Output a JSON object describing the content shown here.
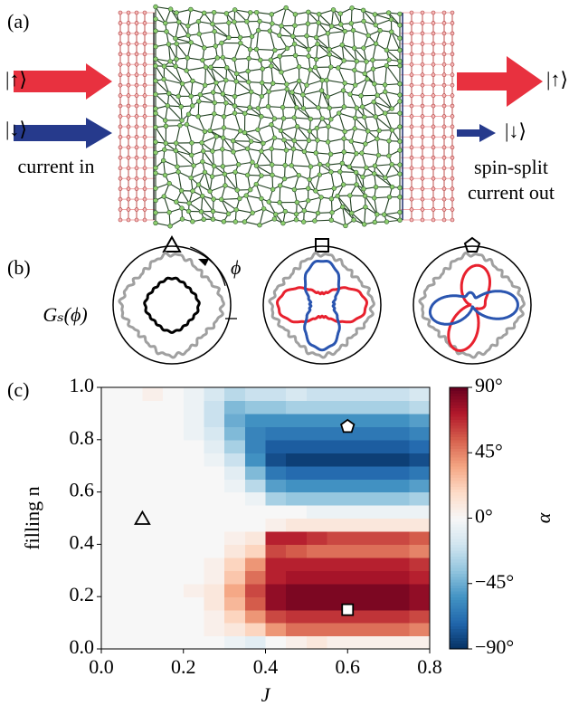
{
  "panel_a": {
    "label": "(a)",
    "spin_up_in": "|↑⟩",
    "spin_down_in": "|↓⟩",
    "input_label": "current in",
    "spin_up_out": "|↑⟩",
    "spin_down_out": "|↓⟩",
    "output_label": [
      "spin-split",
      "current out"
    ]
  },
  "panel_b": {
    "label": "(b)",
    "ylabel": "Gₛ(ϕ)",
    "angle_label": "ϕ"
  },
  "chart_data": {
    "type": "heatmap",
    "panel_label": "(c)",
    "xlabel": "J",
    "ylabel": "filling n",
    "colorbar_label": "α",
    "colormap": "RdBu_r",
    "vlim": [
      -90,
      90
    ],
    "xlim": [
      0,
      0.8
    ],
    "ylim": [
      0,
      1
    ],
    "xticks": [
      {
        "value": 0,
        "label": "0.0"
      },
      0.2,
      0.4,
      0.6,
      0.8
    ],
    "yticks": [
      {
        "value": 0,
        "label": "0.0"
      },
      0.2,
      0.4,
      0.6,
      0.8,
      {
        "value": 1,
        "label": "1.0"
      }
    ],
    "cticks": [
      {
        "value": 90,
        "label": "90°"
      },
      {
        "value": 45,
        "label": "45°"
      },
      {
        "value": 0,
        "label": "0°"
      },
      {
        "value": -45,
        "label": "−45°"
      },
      {
        "value": -90,
        "label": "−90°"
      }
    ],
    "x_bins": [
      0,
      0.05,
      0.1,
      0.15,
      0.2,
      0.25,
      0.3,
      0.35,
      0.4,
      0.45,
      0.5,
      0.55,
      0.6,
      0.65,
      0.7,
      0.75,
      0.8
    ],
    "y_bins": [
      0,
      0.05,
      0.1,
      0.15,
      0.2,
      0.25,
      0.3,
      0.35,
      0.4,
      0.45,
      0.5,
      0.55,
      0.6,
      0.65,
      0.7,
      0.75,
      0.8,
      0.85,
      0.9,
      0.95,
      1
    ],
    "z": [
      [
        0,
        0,
        0,
        0,
        0,
        0,
        -5,
        -10,
        0,
        5,
        10,
        5,
        5,
        5,
        5,
        5
      ],
      [
        0,
        0,
        0,
        0,
        0,
        5,
        10,
        20,
        40,
        50,
        50,
        50,
        50,
        50,
        50,
        45
      ],
      [
        0,
        0,
        0,
        0,
        0,
        5,
        20,
        40,
        60,
        65,
        65,
        65,
        65,
        65,
        65,
        60
      ],
      [
        0,
        0,
        0,
        0,
        0,
        10,
        30,
        55,
        80,
        85,
        85,
        85,
        85,
        85,
        85,
        80
      ],
      [
        0,
        0,
        0,
        0,
        5,
        10,
        35,
        60,
        80,
        85,
        85,
        85,
        85,
        85,
        85,
        80
      ],
      [
        0,
        0,
        0,
        0,
        0,
        5,
        25,
        50,
        70,
        75,
        75,
        75,
        75,
        75,
        75,
        70
      ],
      [
        0,
        0,
        0,
        0,
        0,
        5,
        20,
        40,
        70,
        70,
        70,
        70,
        70,
        70,
        70,
        65
      ],
      [
        0,
        0,
        0,
        0,
        0,
        0,
        10,
        20,
        60,
        55,
        50,
        50,
        50,
        50,
        50,
        45
      ],
      [
        0,
        0,
        0,
        0,
        0,
        0,
        5,
        10,
        70,
        70,
        65,
        60,
        60,
        60,
        60,
        55
      ],
      [
        0,
        0,
        0,
        0,
        0,
        0,
        0,
        0,
        5,
        10,
        10,
        10,
        10,
        10,
        10,
        10
      ],
      [
        0,
        0,
        0,
        0,
        0,
        0,
        0,
        0,
        0,
        0,
        -5,
        -5,
        -5,
        -5,
        -5,
        -5
      ],
      [
        0,
        0,
        0,
        0,
        0,
        0,
        0,
        -5,
        -30,
        -35,
        -35,
        -35,
        -35,
        -35,
        -35,
        -30
      ],
      [
        0,
        0,
        0,
        0,
        0,
        0,
        -5,
        -25,
        -50,
        -55,
        -55,
        -55,
        -55,
        -55,
        -55,
        -50
      ],
      [
        0,
        0,
        0,
        0,
        0,
        0,
        -10,
        -40,
        -65,
        -70,
        -70,
        -70,
        -70,
        -70,
        -70,
        -65
      ],
      [
        0,
        0,
        0,
        0,
        0,
        -5,
        -20,
        -55,
        -80,
        -85,
        -85,
        -85,
        -85,
        -85,
        -85,
        -80
      ],
      [
        0,
        0,
        0,
        0,
        0,
        -10,
        -30,
        -60,
        -75,
        -75,
        -75,
        -75,
        -75,
        -75,
        -75,
        -70
      ],
      [
        0,
        0,
        0,
        0,
        -5,
        -15,
        -40,
        -60,
        -65,
        -65,
        -65,
        -65,
        -65,
        -65,
        -65,
        -60
      ],
      [
        0,
        0,
        0,
        0,
        -5,
        -20,
        -45,
        -55,
        -55,
        -55,
        -55,
        -55,
        -55,
        -55,
        -55,
        -50
      ],
      [
        0,
        0,
        0,
        0,
        -5,
        -20,
        -40,
        -35,
        -35,
        -30,
        -30,
        -30,
        -30,
        -30,
        -30,
        -25
      ],
      [
        0,
        0,
        5,
        0,
        -5,
        -15,
        -25,
        -20,
        -20,
        -15,
        -20,
        -20,
        -20,
        -20,
        -20,
        -15
      ]
    ],
    "markers": [
      {
        "x": 0.1,
        "y": 0.5,
        "shape": "triangle"
      },
      {
        "x": 0.6,
        "y": 0.85,
        "shape": "pentagon"
      },
      {
        "x": 0.6,
        "y": 0.15,
        "shape": "square"
      }
    ]
  }
}
